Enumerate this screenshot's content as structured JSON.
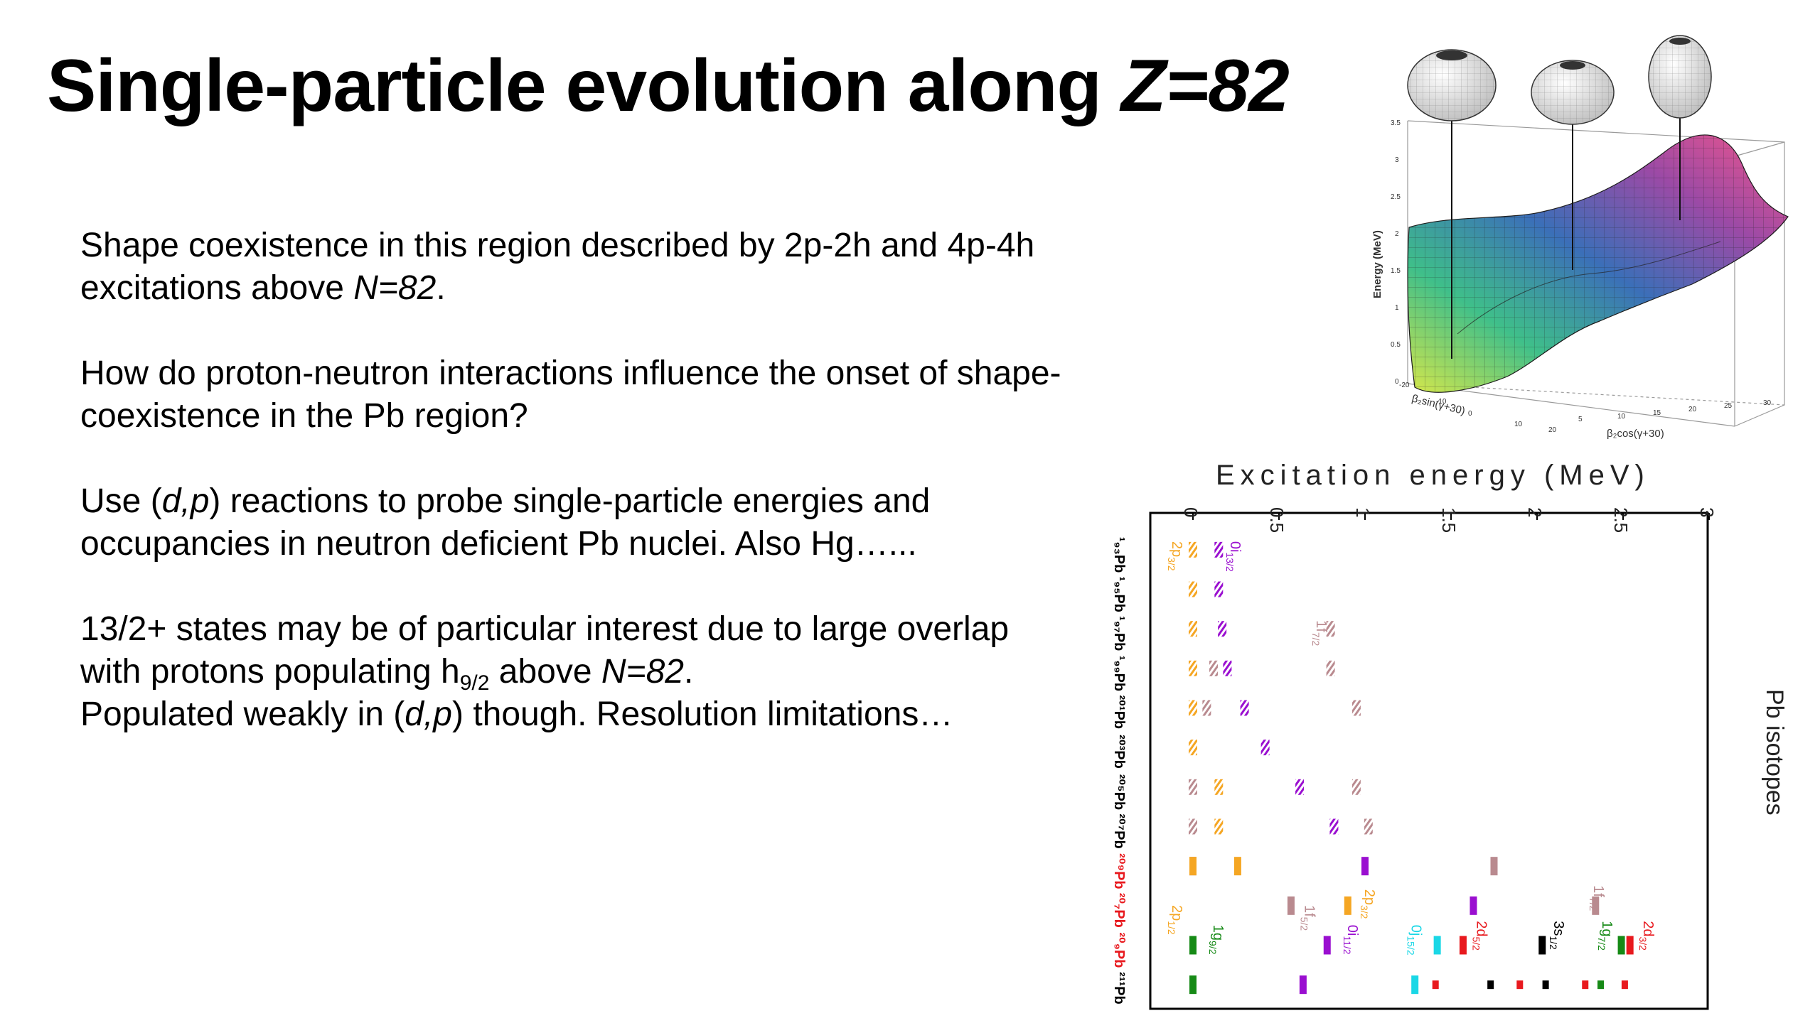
{
  "slide": {
    "title_main": "Single-particle evolution along ",
    "title_italic": "Z=82",
    "paragraphs": {
      "p1": {
        "a": "Shape coexistence in this region described by 2p-2h and 4p-4h excitations above ",
        "b": "N=82",
        "c": "."
      },
      "p2": {
        "a": "How do proton-neutron interactions influence the onset of shape-coexistence in the Pb region?"
      },
      "p3": {
        "a": "Use (",
        "b": "d,p",
        "c": ") reactions to probe single-particle energies and occupancies in neutron deficient Pb nuclei. Also Hg…..."
      },
      "p4": {
        "a": "13/2+ states may be of particular interest due to large overlap with protons populating h",
        "sub": "9/2",
        "b": " above ",
        "c": "N=82",
        "d": ".",
        "e": "Populated weakly in (",
        "f": "d,p",
        "g": ") though. Resolution limitations…"
      }
    }
  },
  "surface_plot": {
    "ylabel": "Energy (MeV)",
    "ylabel_ticks": [
      "3.5",
      "3",
      "2.5",
      "2",
      "1.5",
      "1",
      "0.5",
      "0"
    ],
    "x1_label": "β₂sin(γ+30)",
    "x2_label": "β₂cos(γ+30)",
    "x2_ticks": [
      "5",
      "10",
      "15",
      "20",
      "25",
      "30"
    ],
    "x1_ticks": [
      "-20",
      "-10",
      "0",
      "10",
      "20"
    ]
  },
  "chart_data": {
    "type": "scatter",
    "title": "Excitation energy (MeV)",
    "ylabel": "Pb isotopes",
    "x_ticks": [
      "0",
      "0.5",
      "1",
      "1.5",
      "2",
      "2.5",
      "3"
    ],
    "xlim": [
      0,
      3
    ],
    "row_labels": [
      "¹₉₃Pb",
      "¹₉₅Pb",
      "¹₉₇Pb",
      "¹₉₉Pb",
      "²⁰¹Pb",
      "²⁰³Pb",
      "²⁰⁵Pb",
      "²⁰⁷Pb",
      "²⁰⁹Pb",
      "²⁰₇Pb",
      "²⁰₉Pb",
      "²¹¹Pb"
    ],
    "row_label_colors": [
      "#000000",
      "#000000",
      "#000000",
      "#000000",
      "#000000",
      "#000000",
      "#000000",
      "#000000",
      "#e8191e",
      "#e8191e",
      "#e8191e",
      "#000000"
    ],
    "colors": {
      "p32": "#f5a623",
      "i132": "#9a0fd0",
      "f52": "#b98a8f",
      "f72": "#b98a8f",
      "g92": "#168a16",
      "j152": "#1ad7e6",
      "d52": "#e8191e",
      "s12": "#000000",
      "g72": "#168a16",
      "d32": "#e8191e"
    },
    "levels": [
      {
        "row": 0,
        "energy": 0.0,
        "orbital": "p32",
        "style": "hatched"
      },
      {
        "row": 0,
        "energy": 0.15,
        "orbital": "i132",
        "style": "hatched"
      },
      {
        "row": 1,
        "energy": 0.0,
        "orbital": "p32",
        "style": "hatched"
      },
      {
        "row": 1,
        "energy": 0.15,
        "orbital": "i132",
        "style": "hatched"
      },
      {
        "row": 2,
        "energy": 0.0,
        "orbital": "p32",
        "style": "hatched"
      },
      {
        "row": 2,
        "energy": 0.17,
        "orbital": "i132",
        "style": "hatched"
      },
      {
        "row": 2,
        "energy": 0.8,
        "orbital": "f72",
        "style": "hatched"
      },
      {
        "row": 3,
        "energy": 0.0,
        "orbital": "p32",
        "style": "hatched"
      },
      {
        "row": 3,
        "energy": 0.12,
        "orbital": "f52",
        "style": "hatched"
      },
      {
        "row": 3,
        "energy": 0.2,
        "orbital": "i132",
        "style": "hatched"
      },
      {
        "row": 3,
        "energy": 0.8,
        "orbital": "f72",
        "style": "hatched"
      },
      {
        "row": 4,
        "energy": 0.0,
        "orbital": "p32",
        "style": "hatched"
      },
      {
        "row": 4,
        "energy": 0.08,
        "orbital": "f52",
        "style": "hatched"
      },
      {
        "row": 4,
        "energy": 0.3,
        "orbital": "i132",
        "style": "hatched"
      },
      {
        "row": 4,
        "energy": 0.95,
        "orbital": "f72",
        "style": "hatched"
      },
      {
        "row": 5,
        "energy": 0.0,
        "orbital": "p32",
        "style": "hatched"
      },
      {
        "row": 5,
        "energy": 0.42,
        "orbital": "i132",
        "style": "hatched"
      },
      {
        "row": 6,
        "energy": 0.0,
        "orbital": "f52",
        "style": "hatched"
      },
      {
        "row": 6,
        "energy": 0.15,
        "orbital": "p32",
        "style": "hatched"
      },
      {
        "row": 6,
        "energy": 0.62,
        "orbital": "i132",
        "style": "hatched"
      },
      {
        "row": 6,
        "energy": 0.95,
        "orbital": "f72",
        "style": "hatched"
      },
      {
        "row": 7,
        "energy": 0.0,
        "orbital": "f52",
        "style": "hatched"
      },
      {
        "row": 7,
        "energy": 0.15,
        "orbital": "p32",
        "style": "hatched"
      },
      {
        "row": 7,
        "energy": 0.82,
        "orbital": "i132",
        "style": "hatched"
      },
      {
        "row": 7,
        "energy": 1.02,
        "orbital": "f72",
        "style": "hatched"
      },
      {
        "row": 8,
        "energy": 0.0,
        "orbital": "f52",
        "style": "solid"
      },
      {
        "row": 8,
        "energy": 0.0,
        "orbital": "p32",
        "style": "solid"
      },
      {
        "row": 8,
        "energy": 0.26,
        "orbital": "p32",
        "style": "solid"
      },
      {
        "row": 8,
        "energy": 1.0,
        "orbital": "i132",
        "style": "solid"
      },
      {
        "row": 8,
        "energy": 1.75,
        "orbital": "f72",
        "style": "solid"
      },
      {
        "row": 9,
        "energy": 0.57,
        "orbital": "f52",
        "style": "solid"
      },
      {
        "row": 9,
        "energy": 0.9,
        "orbital": "p32",
        "style": "solid"
      },
      {
        "row": 9,
        "energy": 1.63,
        "orbital": "i132",
        "style": "solid"
      },
      {
        "row": 9,
        "energy": 2.34,
        "orbital": "f72",
        "style": "solid"
      },
      {
        "row": 10,
        "energy": 0.0,
        "orbital": "g92",
        "style": "solid"
      },
      {
        "row": 10,
        "energy": 0.78,
        "orbital": "i132",
        "style": "solid"
      },
      {
        "row": 10,
        "energy": 1.42,
        "orbital": "j152",
        "style": "solid"
      },
      {
        "row": 10,
        "energy": 1.57,
        "orbital": "d52",
        "style": "solid"
      },
      {
        "row": 10,
        "energy": 2.03,
        "orbital": "s12",
        "style": "solid"
      },
      {
        "row": 10,
        "energy": 2.49,
        "orbital": "g72",
        "style": "solid"
      },
      {
        "row": 10,
        "energy": 2.54,
        "orbital": "d32",
        "style": "solid"
      },
      {
        "row": 11,
        "energy": 0.0,
        "orbital": "g92",
        "style": "solid"
      },
      {
        "row": 11,
        "energy": 0.64,
        "orbital": "i132",
        "style": "solid"
      },
      {
        "row": 11,
        "energy": 1.29,
        "orbital": "j152",
        "style": "solid"
      },
      {
        "row": 11,
        "energy": 1.41,
        "orbital": "d52",
        "style": "small"
      },
      {
        "row": 11,
        "energy": 1.73,
        "orbital": "s12",
        "style": "small"
      },
      {
        "row": 11,
        "energy": 1.9,
        "orbital": "d52",
        "style": "small"
      },
      {
        "row": 11,
        "energy": 2.05,
        "orbital": "s12",
        "style": "small"
      },
      {
        "row": 11,
        "energy": 2.28,
        "orbital": "d32",
        "style": "small"
      },
      {
        "row": 11,
        "energy": 2.37,
        "orbital": "g72",
        "style": "small"
      },
      {
        "row": 11,
        "energy": 2.51,
        "orbital": "d52",
        "style": "small"
      }
    ],
    "annotations": [
      {
        "text": "2p",
        "sub": "3/2",
        "row": 0,
        "energy": -0.12,
        "orbital": "p32"
      },
      {
        "text": "0i",
        "sub": "13/2",
        "row": 0,
        "energy": 0.22,
        "orbital": "i132"
      },
      {
        "text": "1f",
        "sub": "7/2",
        "row": 2,
        "energy": 0.72,
        "orbital": "f72"
      },
      {
        "text": "1f",
        "sub": "7/2",
        "row": 8.7,
        "energy": 2.33,
        "orbital": "f72"
      },
      {
        "text": "2p",
        "sub": "3/2",
        "row": 8.8,
        "energy": 1.0,
        "orbital": "p32"
      },
      {
        "text": "2p",
        "sub": "1/2",
        "row": 9.2,
        "energy": -0.12,
        "orbital": "p32"
      },
      {
        "text": "1f",
        "sub": "5/2",
        "row": 9.2,
        "energy": 0.65,
        "orbital": "f52"
      },
      {
        "text": "0i",
        "sub": "11/2",
        "row": 9.7,
        "energy": 0.9,
        "orbital": "i132"
      },
      {
        "text": "1g",
        "sub": "9/2",
        "row": 9.7,
        "energy": 0.12,
        "orbital": "g92"
      },
      {
        "text": "0j",
        "sub": "15/2",
        "row": 9.7,
        "energy": 1.27,
        "orbital": "j152"
      },
      {
        "text": "2d",
        "sub": "5/2",
        "row": 9.6,
        "energy": 1.65,
        "orbital": "d52"
      },
      {
        "text": "3s",
        "sub": "1/2",
        "row": 9.6,
        "energy": 2.1,
        "orbital": "s12"
      },
      {
        "text": "1g",
        "sub": "7/2",
        "row": 9.6,
        "energy": 2.38,
        "orbital": "g72"
      },
      {
        "text": "2d",
        "sub": "3/2",
        "row": 9.6,
        "energy": 2.62,
        "orbital": "d32"
      }
    ]
  }
}
